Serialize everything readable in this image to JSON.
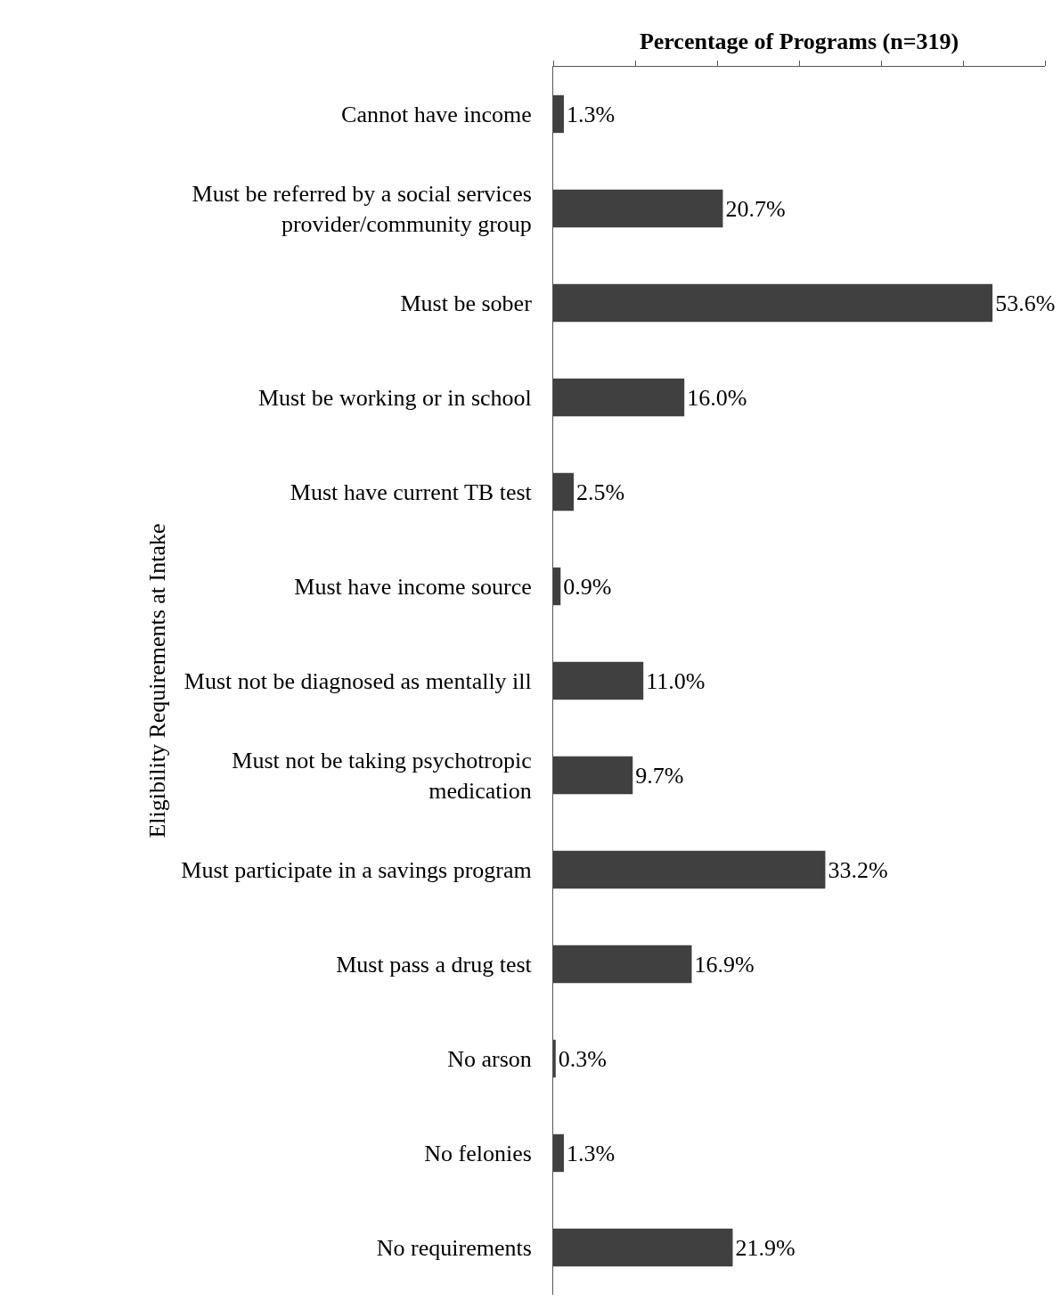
{
  "chart_data": {
    "type": "bar",
    "orientation": "horizontal",
    "xlabel": "Percentage of Programs (n=319)",
    "ylabel": "Eligibility Requirements at Intake",
    "categories": [
      "Cannot have income",
      "Must be referred by a social services provider/community group",
      "Must be sober",
      "Must be working or in school",
      "Must have current TB test",
      "Must have income source",
      "Must not be diagnosed as mentally ill",
      "Must not be taking psychotropic medication",
      "Must participate in a savings program",
      "Must pass a drug test",
      "No arson",
      "No felonies",
      "No requirements"
    ],
    "values": [
      1.3,
      20.7,
      53.6,
      16.0,
      2.5,
      0.9,
      11.0,
      9.7,
      33.2,
      16.9,
      0.3,
      1.3,
      21.9
    ],
    "value_labels": [
      "1.3%",
      "20.7%",
      "53.6%",
      "16.0%",
      "2.5%",
      "0.9%",
      "11.0%",
      "9.7%",
      "33.2%",
      "16.9%",
      "0.3%",
      "1.3%",
      "21.9%"
    ],
    "color": "#404040",
    "xlim": [
      0,
      60
    ],
    "xticks": [
      {
        "value": 0,
        "label": null
      },
      {
        "value": 10,
        "label": null
      },
      {
        "value": 20,
        "label": null
      },
      {
        "value": 30,
        "label": null
      },
      {
        "value": 40,
        "label": null
      },
      {
        "value": 50,
        "label": null
      },
      {
        "value": 60,
        "label": null
      }
    ],
    "tick_labels": "y",
    "grid": false,
    "legend": false
  }
}
